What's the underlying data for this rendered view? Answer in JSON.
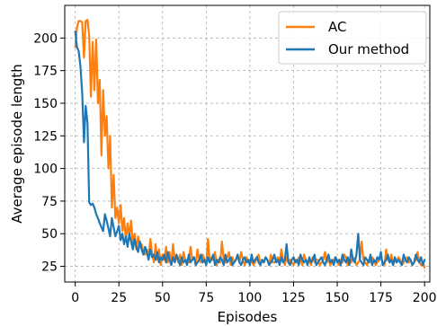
{
  "chart_data": {
    "type": "line",
    "title": "",
    "xlabel": "Episodes",
    "ylabel": "Average episode length",
    "xlim": [
      -6,
      203
    ],
    "ylim": [
      13,
      225
    ],
    "xticks": [
      0,
      25,
      50,
      75,
      100,
      125,
      150,
      175,
      200
    ],
    "yticks": [
      25,
      50,
      75,
      100,
      125,
      150,
      175,
      200
    ],
    "grid": true,
    "legend": "top-right",
    "series": [
      {
        "name": "AC",
        "color": "#ff7f0e",
        "x": [
          0,
          1,
          2,
          3,
          4,
          5,
          6,
          7,
          8,
          9,
          10,
          11,
          12,
          13,
          14,
          15,
          16,
          17,
          18,
          19,
          20,
          21,
          22,
          23,
          24,
          25,
          26,
          27,
          28,
          29,
          30,
          31,
          32,
          33,
          34,
          35,
          36,
          37,
          38,
          39,
          40,
          41,
          42,
          43,
          44,
          45,
          46,
          47,
          48,
          49,
          50,
          51,
          52,
          53,
          54,
          55,
          56,
          57,
          58,
          59,
          60,
          61,
          62,
          63,
          64,
          65,
          66,
          67,
          68,
          69,
          70,
          71,
          72,
          73,
          74,
          75,
          76,
          77,
          78,
          79,
          80,
          81,
          82,
          83,
          84,
          85,
          86,
          87,
          88,
          89,
          90,
          91,
          92,
          93,
          94,
          95,
          96,
          97,
          98,
          99,
          100,
          101,
          102,
          103,
          104,
          105,
          106,
          107,
          108,
          109,
          110,
          111,
          112,
          113,
          114,
          115,
          116,
          117,
          118,
          119,
          120,
          121,
          122,
          123,
          124,
          125,
          126,
          127,
          128,
          129,
          130,
          131,
          132,
          133,
          134,
          135,
          136,
          137,
          138,
          139,
          140,
          141,
          142,
          143,
          144,
          145,
          146,
          147,
          148,
          149,
          150,
          151,
          152,
          153,
          154,
          155,
          156,
          157,
          158,
          159,
          160,
          161,
          162,
          163,
          164,
          165,
          166,
          167,
          168,
          169,
          170,
          171,
          172,
          173,
          174,
          175,
          176,
          177,
          178,
          179,
          180,
          181,
          182,
          183,
          184,
          185,
          186,
          187,
          188,
          189,
          190,
          191,
          192,
          193,
          194,
          195,
          196,
          197,
          198,
          199,
          200
        ],
        "values": [
          193,
          208,
          213,
          213,
          212,
          185,
          213,
          214,
          202,
          155,
          197,
          160,
          199,
          150,
          168,
          110,
          160,
          125,
          140,
          100,
          125,
          70,
          95,
          62,
          70,
          58,
          72,
          52,
          62,
          45,
          58,
          48,
          60,
          42,
          50,
          38,
          48,
          40,
          42,
          36,
          34,
          38,
          32,
          46,
          35,
          28,
          42,
          30,
          38,
          26,
          34,
          30,
          40,
          28,
          36,
          26,
          42,
          30,
          32,
          28,
          34,
          26,
          36,
          30,
          30,
          28,
          40,
          30,
          32,
          26,
          38,
          30,
          28,
          34,
          30,
          26,
          46,
          28,
          32,
          30,
          36,
          26,
          30,
          28,
          44,
          30,
          28,
          32,
          36,
          26,
          32,
          28,
          30,
          34,
          28,
          36,
          30,
          26,
          32,
          28,
          30,
          30,
          26,
          28,
          32,
          34,
          26,
          30,
          28,
          32,
          30,
          26,
          34,
          28,
          28,
          30,
          32,
          28,
          38,
          30,
          26,
          32,
          28,
          30,
          28,
          26,
          30,
          28,
          32,
          30,
          26,
          34,
          30,
          28,
          30,
          26,
          32,
          28,
          30,
          30,
          26,
          28,
          30,
          36,
          28,
          30,
          26,
          28,
          30,
          32,
          30,
          26,
          30,
          28,
          34,
          32,
          26,
          30,
          28,
          32,
          30,
          26,
          28,
          30,
          44,
          30,
          28,
          26,
          30,
          28,
          32,
          30,
          26,
          28,
          30,
          32,
          28,
          26,
          38,
          30,
          28,
          34,
          26,
          30,
          28,
          32,
          30,
          26,
          28,
          30,
          32,
          28,
          30,
          26,
          28,
          30,
          36,
          28,
          26,
          28,
          24
        ]
      },
      {
        "name": "Our method",
        "color": "#1f77b4",
        "x": [
          0,
          1,
          2,
          3,
          4,
          5,
          6,
          7,
          8,
          9,
          10,
          11,
          12,
          13,
          14,
          15,
          16,
          17,
          18,
          19,
          20,
          21,
          22,
          23,
          24,
          25,
          26,
          27,
          28,
          29,
          30,
          31,
          32,
          33,
          34,
          35,
          36,
          37,
          38,
          39,
          40,
          41,
          42,
          43,
          44,
          45,
          46,
          47,
          48,
          49,
          50,
          51,
          52,
          53,
          54,
          55,
          56,
          57,
          58,
          59,
          60,
          61,
          62,
          63,
          64,
          65,
          66,
          67,
          68,
          69,
          70,
          71,
          72,
          73,
          74,
          75,
          76,
          77,
          78,
          79,
          80,
          81,
          82,
          83,
          84,
          85,
          86,
          87,
          88,
          89,
          90,
          91,
          92,
          93,
          94,
          95,
          96,
          97,
          98,
          99,
          100,
          101,
          102,
          103,
          104,
          105,
          106,
          107,
          108,
          109,
          110,
          111,
          112,
          113,
          114,
          115,
          116,
          117,
          118,
          119,
          120,
          121,
          122,
          123,
          124,
          125,
          126,
          127,
          128,
          129,
          130,
          131,
          132,
          133,
          134,
          135,
          136,
          137,
          138,
          139,
          140,
          141,
          142,
          143,
          144,
          145,
          146,
          147,
          148,
          149,
          150,
          151,
          152,
          153,
          154,
          155,
          156,
          157,
          158,
          159,
          160,
          161,
          162,
          163,
          164,
          165,
          166,
          167,
          168,
          169,
          170,
          171,
          172,
          173,
          174,
          175,
          176,
          177,
          178,
          179,
          180,
          181,
          182,
          183,
          184,
          185,
          186,
          187,
          188,
          189,
          190,
          191,
          192,
          193,
          194,
          195,
          196,
          197,
          198,
          199,
          200
        ],
        "values": [
          205,
          193,
          190,
          178,
          158,
          120,
          148,
          135,
          74,
          72,
          73,
          70,
          65,
          62,
          58,
          55,
          52,
          65,
          60,
          54,
          48,
          62,
          55,
          48,
          52,
          56,
          45,
          50,
          42,
          48,
          40,
          50,
          44,
          38,
          46,
          40,
          36,
          44,
          38,
          34,
          40,
          36,
          30,
          38,
          32,
          34,
          30,
          36,
          28,
          32,
          30,
          34,
          28,
          36,
          30,
          26,
          32,
          28,
          34,
          30,
          26,
          32,
          28,
          30,
          26,
          34,
          28,
          30,
          32,
          26,
          28,
          30,
          34,
          28,
          30,
          26,
          32,
          28,
          30,
          34,
          26,
          30,
          28,
          32,
          30,
          26,
          34,
          28,
          30,
          32,
          26,
          28,
          30,
          34,
          28,
          26,
          30,
          32,
          28,
          30,
          26,
          34,
          28,
          30,
          32,
          28,
          26,
          30,
          28,
          32,
          30,
          26,
          28,
          30,
          34,
          28,
          30,
          26,
          32,
          28,
          30,
          42,
          28,
          26,
          30,
          32,
          28,
          30,
          26,
          34,
          30,
          28,
          30,
          26,
          32,
          28,
          30,
          34,
          26,
          28,
          30,
          32,
          28,
          26,
          30,
          34,
          28,
          30,
          26,
          32,
          28,
          30,
          26,
          34,
          30,
          28,
          32,
          26,
          38,
          30,
          28,
          34,
          50,
          30,
          28,
          26,
          32,
          30,
          28,
          34,
          26,
          30,
          28,
          32,
          30,
          36,
          26,
          28,
          30,
          34,
          28,
          30,
          26,
          32,
          28,
          30,
          28,
          26,
          34,
          30,
          28,
          32,
          30,
          26,
          28,
          34,
          30,
          28,
          32,
          26,
          30
        ]
      }
    ]
  }
}
